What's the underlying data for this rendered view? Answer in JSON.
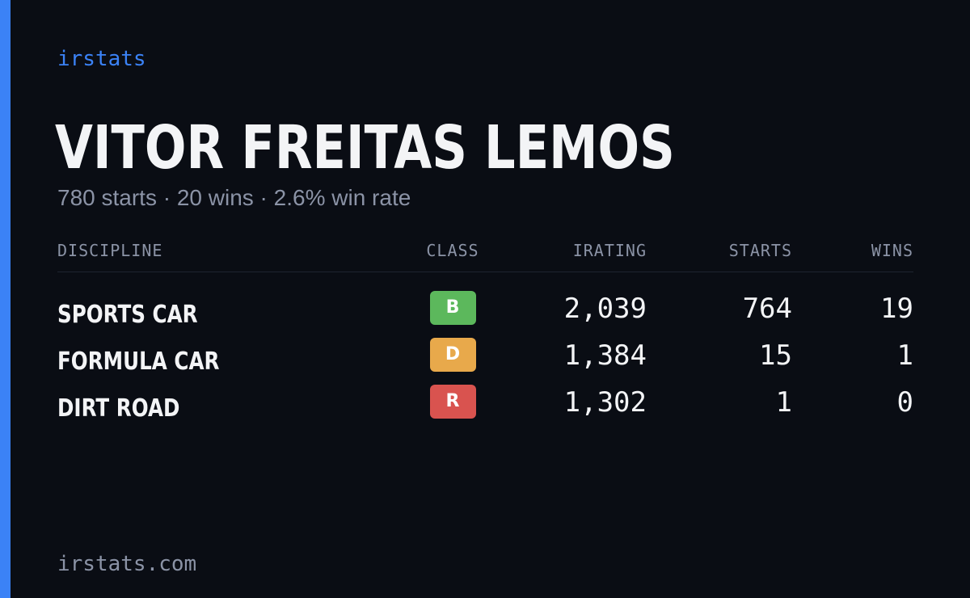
{
  "brand": "irstats",
  "player": {
    "name": "VITOR FREITAS LEMOS",
    "summary": "780 starts · 20 wins · 2.6% win rate"
  },
  "table": {
    "headers": {
      "discipline": "DISCIPLINE",
      "class": "CLASS",
      "irating": "IRATING",
      "starts": "STARTS",
      "wins": "WINS"
    },
    "rows": [
      {
        "discipline": "SPORTS CAR",
        "class": "B",
        "class_color": "#5cb85c",
        "irating": "2,039",
        "starts": "764",
        "wins": "19"
      },
      {
        "discipline": "FORMULA CAR",
        "class": "D",
        "class_color": "#e8a94b",
        "irating": "1,384",
        "starts": "15",
        "wins": "1"
      },
      {
        "discipline": "DIRT ROAD",
        "class": "R",
        "class_color": "#d9534f",
        "irating": "1,302",
        "starts": "1",
        "wins": "0"
      }
    ]
  },
  "footer": "irstats.com",
  "colors": {
    "background": "#0a0d14",
    "accent": "#3b82f6",
    "text_primary": "#f3f4f6",
    "text_muted": "#8b93a6"
  }
}
